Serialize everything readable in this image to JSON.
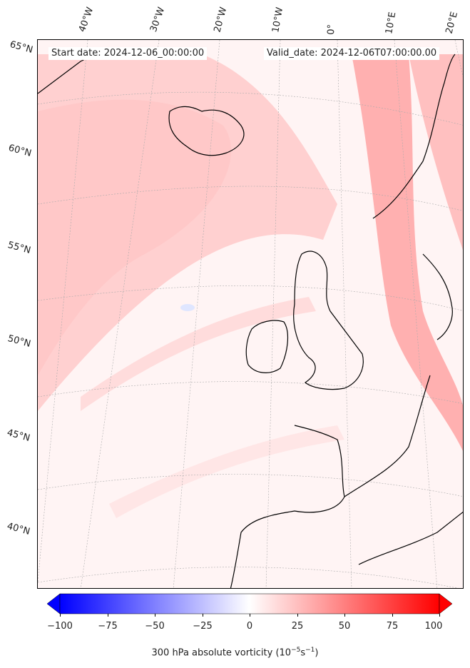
{
  "header": {
    "start_date": "Start date: 2024-12-06_00:00:00",
    "valid_date": "Valid_date: 2024-12-06T07:00:00.00"
  },
  "longitude_labels": [
    "40°W",
    "30°W",
    "20°W",
    "10°W",
    "0°",
    "10°E",
    "20°E"
  ],
  "latitude_labels": [
    "65°N",
    "60°N",
    "55°N",
    "50°N",
    "45°N",
    "40°N"
  ],
  "colorbar": {
    "ticks": [
      "−100",
      "−75",
      "−50",
      "−25",
      "0",
      "25",
      "50",
      "75",
      "100"
    ],
    "label": "300 hPa absolute vorticity (10",
    "label_exp": "−5",
    "label_mid": "s",
    "label_exp2": "−1",
    "label_end": ")",
    "min": -100,
    "max": 100,
    "colors": {
      "negative": "#0000ff",
      "zero": "#ffffff",
      "positive": "#ff0000"
    }
  },
  "map": {
    "background_color": "#fff5f5",
    "vorticity_band_color": "#ffb3b3",
    "coastline_color": "#000000"
  }
}
